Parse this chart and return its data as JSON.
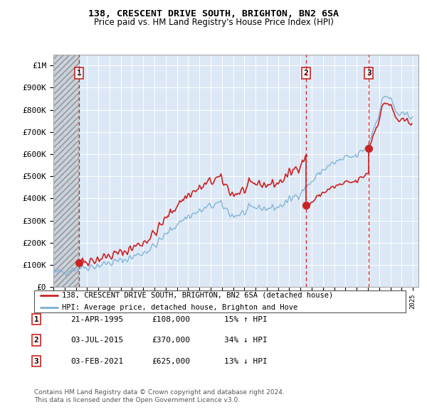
{
  "title1": "138, CRESCENT DRIVE SOUTH, BRIGHTON, BN2 6SA",
  "title2": "Price paid vs. HM Land Registry's House Price Index (HPI)",
  "ylabel_vals": [
    "£0",
    "£100K",
    "£200K",
    "£300K",
    "£400K",
    "£500K",
    "£600K",
    "£700K",
    "£800K",
    "£900K",
    "£1M"
  ],
  "yticks": [
    0,
    100000,
    200000,
    300000,
    400000,
    500000,
    600000,
    700000,
    800000,
    900000,
    1000000
  ],
  "xlim_start": 1993.0,
  "xlim_end": 2025.5,
  "ylim": [
    0,
    1050000
  ],
  "transactions": [
    {
      "date": 1995.3,
      "price": 108000,
      "label": "1"
    },
    {
      "date": 2015.5,
      "price": 370000,
      "label": "2"
    },
    {
      "date": 2021.08,
      "price": 625000,
      "label": "3"
    }
  ],
  "legend_line1": "138, CRESCENT DRIVE SOUTH, BRIGHTON, BN2 6SA (detached house)",
  "legend_line2": "HPI: Average price, detached house, Brighton and Hove",
  "table_rows": [
    {
      "num": "1",
      "date": "21-APR-1995",
      "price": "£108,000",
      "hpi": "15% ↑ HPI"
    },
    {
      "num": "2",
      "date": "03-JUL-2015",
      "price": "£370,000",
      "hpi": "34% ↓ HPI"
    },
    {
      "num": "3",
      "date": "03-FEB-2021",
      "price": "£625,000",
      "hpi": "13% ↓ HPI"
    }
  ],
  "footnote1": "Contains HM Land Registry data © Crown copyright and database right 2024.",
  "footnote2": "This data is licensed under the Open Government Licence v3.0.",
  "hpi_color": "#7ab0d4",
  "price_color": "#cc2222",
  "vline_color": "#cc2222",
  "plot_bg": "#dce8f5"
}
